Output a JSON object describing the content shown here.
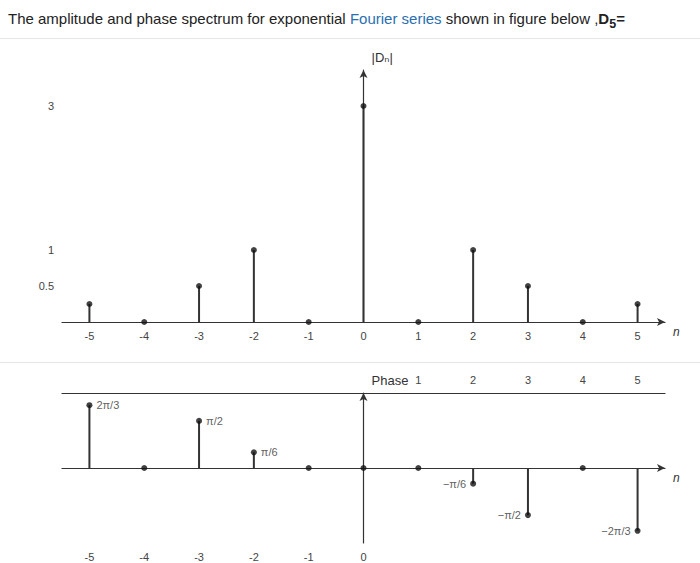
{
  "question": [
    "The amplitude and phase spectrum for exponential ",
    "Fourier series",
    " shown in figure below ,",
    "D",
    "5",
    "="
  ],
  "chart_data": [
    {
      "type": "stem",
      "ylabel": "|Dₙ|",
      "xlabel": "n",
      "x": [
        -5,
        -4,
        -3,
        -2,
        -1,
        0,
        1,
        2,
        3,
        4,
        5
      ],
      "values": [
        0.25,
        0,
        0.5,
        1,
        0,
        3,
        0,
        1,
        0.5,
        0,
        0.25
      ],
      "xlim": [
        -5.5,
        5.5
      ],
      "xticks": [
        -5,
        -4,
        -3,
        -2,
        -1,
        0,
        1,
        2,
        3,
        4,
        5
      ],
      "ylim": [
        0,
        3.5
      ],
      "yticks": [
        0.5,
        1,
        3
      ],
      "grid": false,
      "color": "#333333",
      "marker": "circle"
    },
    {
      "type": "stem",
      "ylabel": "Phase",
      "xlabel": "n",
      "x": [
        -5,
        -4,
        -3,
        -2,
        -1,
        0,
        1,
        2,
        3,
        4,
        5
      ],
      "values": [
        2.0944,
        0,
        1.5708,
        0.5236,
        0,
        0,
        0,
        -0.5236,
        -1.5708,
        0,
        -2.0944
      ],
      "value_labels": [
        "2π/3",
        null,
        "π/2",
        "π/6",
        null,
        null,
        null,
        "−π/6",
        "−π/2",
        null,
        "−2π/3"
      ],
      "data_labels": true,
      "xlim": [
        -5.5,
        5.5
      ],
      "xticks": [
        -5,
        -4,
        -3,
        -2,
        -1,
        0,
        1,
        2,
        3,
        4,
        5
      ],
      "ylim": [
        -2.5,
        2.5
      ],
      "tick_labels": "x",
      "grid": false,
      "color": "#333333",
      "marker": "circle"
    }
  ]
}
